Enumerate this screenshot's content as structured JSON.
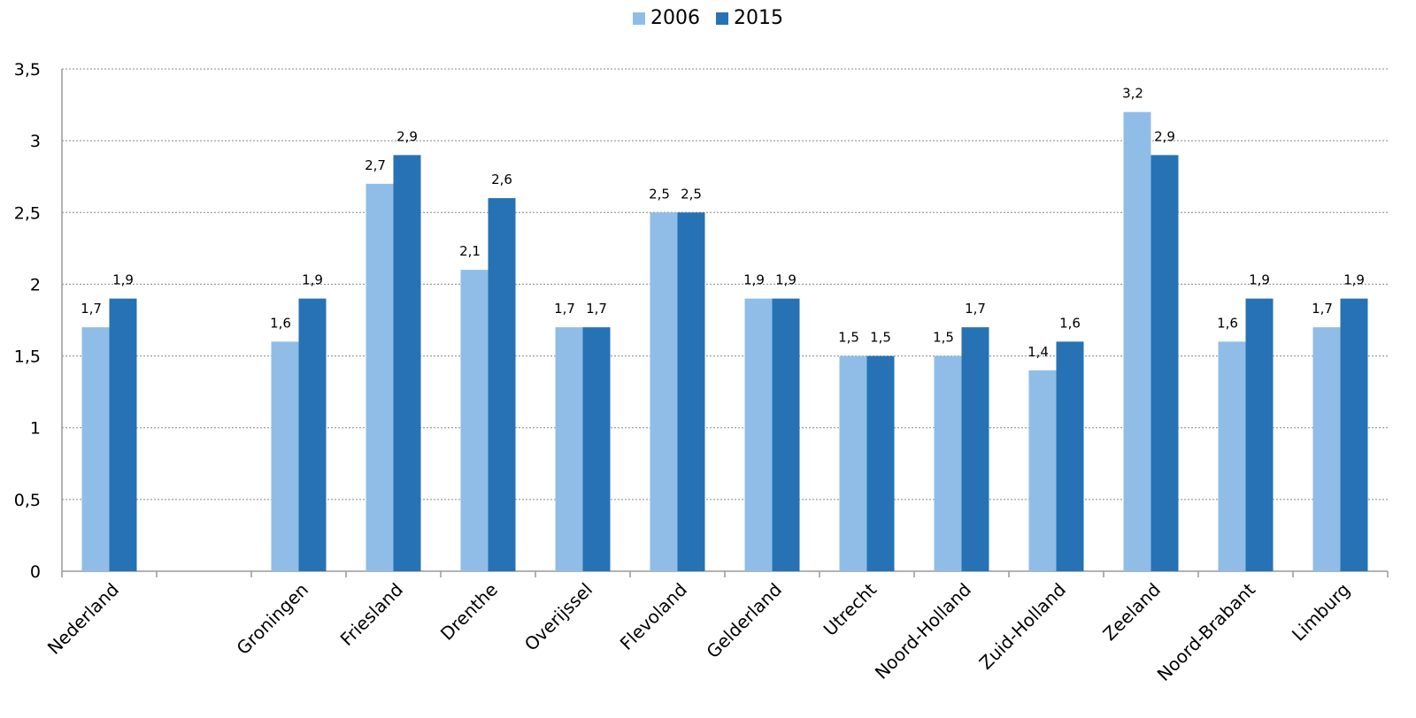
{
  "chart_data": {
    "type": "bar",
    "title": "",
    "xlabel": "",
    "ylabel": "",
    "ylim": [
      0,
      3.5
    ],
    "yticks": [
      0,
      0.5,
      1,
      1.5,
      2,
      2.5,
      3,
      3.5
    ],
    "ytick_labels": [
      "0",
      "0,5",
      "1",
      "1,5",
      "2",
      "2,5",
      "3",
      "3,5"
    ],
    "grid": true,
    "legend_position": "top-center",
    "categories": [
      "Nederland",
      "",
      "Groningen",
      "Friesland",
      "Drenthe",
      "Overijssel",
      "Flevoland",
      "Gelderland",
      "Utrecht",
      "Noord-Holland",
      "Zuid-Holland",
      "Zeeland",
      "Noord-Brabant",
      "Limburg"
    ],
    "series": [
      {
        "name": "2006",
        "color": "#8fbde8",
        "values": [
          1.7,
          null,
          1.6,
          2.7,
          2.1,
          1.7,
          2.5,
          1.9,
          1.5,
          1.5,
          1.4,
          3.2,
          1.6,
          1.7
        ],
        "labels": [
          "1,7",
          "",
          "1,6",
          "2,7",
          "2,1",
          "1,7",
          "2,5",
          "1,9",
          "1,5",
          "1,5",
          "1,4",
          "3,2",
          "1,6",
          "1,7"
        ]
      },
      {
        "name": "2015",
        "color": "#2672b4",
        "values": [
          1.9,
          null,
          1.9,
          2.9,
          2.6,
          1.7,
          2.5,
          1.9,
          1.5,
          1.7,
          1.6,
          2.9,
          1.9,
          1.9
        ],
        "labels": [
          "1,9",
          "",
          "1,9",
          "2,9",
          "2,6",
          "1,7",
          "2,5",
          "1,9",
          "1,5",
          "1,7",
          "1,6",
          "2,9",
          "1,9",
          "1,9"
        ]
      }
    ]
  }
}
